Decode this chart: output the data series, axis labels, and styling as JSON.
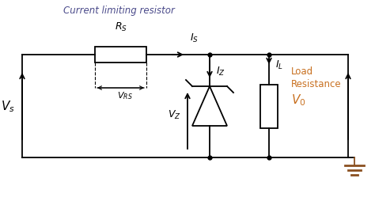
{
  "bg_color": "#ffffff",
  "line_color": "#000000",
  "title_text": "Current limiting resistor",
  "title_color": "#4a4a8a",
  "title_fontsize": 8.5,
  "label_color": "#000000",
  "orange_color": "#c87020",
  "fig_width": 4.74,
  "fig_height": 2.55,
  "dpi": 100
}
